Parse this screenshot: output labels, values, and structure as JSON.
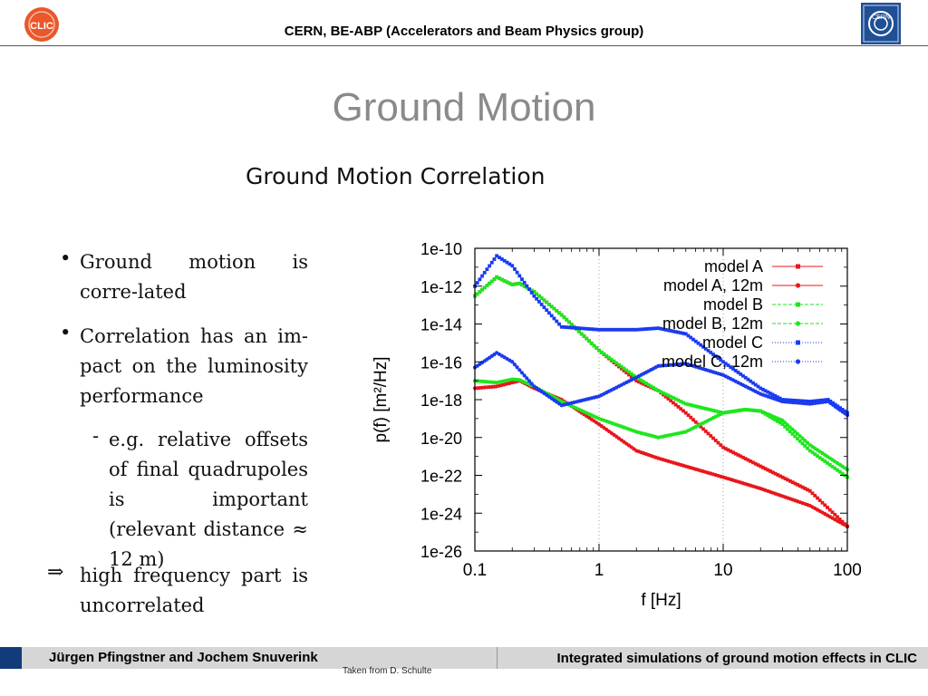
{
  "header": {
    "title": "CERN, BE-ABP (Accelerators and Beam Physics group)",
    "left_logo_text": "CLIC",
    "right_logo_text": "CERN"
  },
  "slide": {
    "title": "Ground Motion",
    "figure_heading": "Ground Motion Correlation"
  },
  "bullets": {
    "b1_marker": "•",
    "b1": "Ground motion is corre-lated",
    "b2_marker": "•",
    "b2": "Correlation has an im-pact on the luminosity performance",
    "b3_marker": "-",
    "b3": "e.g. relative offsets of final quadrupoles is important (relevant distance ≈ 12 m)",
    "b4_marker": "⇒",
    "b4": "high frequency part is uncorrelated"
  },
  "footer": {
    "left": "Jürgen Pfingstner and Jochem Snuverink",
    "right": "Integrated simulations of ground motion effects in CLIC",
    "credit": "Taken from D. Schulte"
  },
  "colors": {
    "red": "#e8161b",
    "green": "#1ee61e",
    "blue": "#1a3bf0",
    "footer_accent": "#123b7a"
  },
  "chart_data": {
    "type": "line",
    "xlabel": "f [Hz]",
    "ylabel": "p(f) [m²/Hz]",
    "x_scale": "log",
    "y_scale": "log",
    "xlim": [
      0.1,
      100
    ],
    "ylim": [
      1e-26,
      1e-10
    ],
    "x_ticks": [
      "0.1",
      "1",
      "10",
      "100"
    ],
    "y_ticks": [
      "1e-10",
      "1e-12",
      "1e-14",
      "1e-16",
      "1e-18",
      "1e-20",
      "1e-22",
      "1e-24",
      "1e-26"
    ],
    "grid": "vertical dotted at decades",
    "legend_position": "top-right",
    "series": [
      {
        "name": "model A",
        "color": "#e8161b",
        "x": [
          0.1,
          0.15,
          0.2,
          0.23,
          0.3,
          0.5,
          1,
          2,
          3,
          5,
          10,
          20,
          50,
          100
        ],
        "y": [
          3e-13,
          3e-12,
          1.2e-12,
          1.4e-12,
          5e-13,
          3e-14,
          4e-16,
          1e-17,
          3e-18,
          2e-19,
          3e-21,
          3e-22,
          1.5e-23,
          2e-25
        ]
      },
      {
        "name": "model A, 12m",
        "color": "#e8161b",
        "x": [
          0.1,
          0.15,
          0.2,
          0.23,
          0.3,
          0.5,
          1,
          2,
          3,
          5,
          10,
          20,
          50,
          100
        ],
        "y": [
          4e-18,
          5e-18,
          8e-18,
          1e-17,
          4e-18,
          1e-18,
          5e-20,
          2e-21,
          8e-22,
          3e-22,
          8e-23,
          2e-23,
          2.5e-24,
          2e-25
        ]
      },
      {
        "name": "model B",
        "color": "#1ee61e",
        "x": [
          0.1,
          0.15,
          0.2,
          0.23,
          0.3,
          0.5,
          1,
          2,
          3,
          5,
          10,
          15,
          20,
          30,
          50,
          100
        ],
        "y": [
          3e-13,
          3e-12,
          1.2e-12,
          1.4e-12,
          5e-13,
          3e-14,
          4e-16,
          1.5e-17,
          3e-18,
          6e-19,
          2e-19,
          3e-19,
          2.5e-19,
          5e-20,
          2e-21,
          8e-23
        ]
      },
      {
        "name": "model B, 12m",
        "color": "#1ee61e",
        "x": [
          0.1,
          0.15,
          0.2,
          0.23,
          0.3,
          0.5,
          1,
          2,
          3,
          5,
          10,
          15,
          20,
          30,
          50,
          100
        ],
        "y": [
          1e-17,
          8e-18,
          1.2e-17,
          1.1e-17,
          5e-18,
          8e-19,
          1e-19,
          2e-20,
          1e-20,
          2e-20,
          2e-19,
          3e-19,
          2.5e-19,
          8e-20,
          4e-21,
          2e-22
        ]
      },
      {
        "name": "model C",
        "color": "#1a3bf0",
        "x": [
          0.1,
          0.15,
          0.2,
          0.3,
          0.5,
          1,
          2,
          3,
          5,
          10,
          20,
          30,
          50,
          70,
          100
        ],
        "y": [
          1e-12,
          4e-11,
          1.2e-11,
          3e-13,
          7e-15,
          5e-15,
          5e-15,
          6e-15,
          3e-15,
          1e-16,
          4e-18,
          1e-18,
          8e-19,
          1e-18,
          2e-19
        ]
      },
      {
        "name": "model C, 12m",
        "color": "#1a3bf0",
        "x": [
          0.1,
          0.15,
          0.2,
          0.3,
          0.5,
          1,
          2,
          3,
          5,
          10,
          20,
          30,
          50,
          70,
          100
        ],
        "y": [
          5e-17,
          3e-16,
          1e-16,
          5e-18,
          5e-19,
          1.5e-18,
          1.5e-17,
          6e-17,
          8e-17,
          2e-17,
          2e-18,
          8e-19,
          6e-19,
          8e-19,
          1.5e-19
        ]
      }
    ]
  }
}
